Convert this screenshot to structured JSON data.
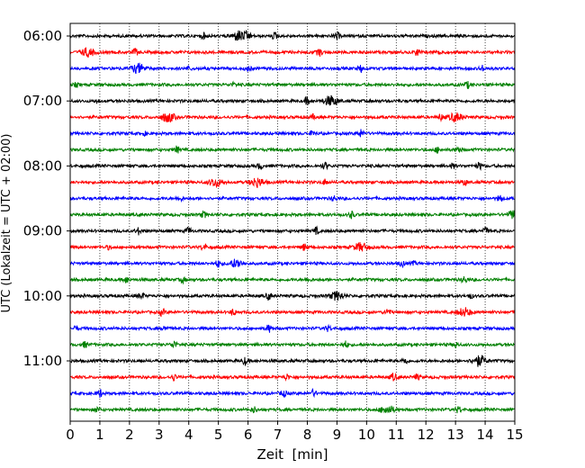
{
  "chart_data": {
    "type": "line",
    "title": "",
    "xlabel": "Zeit  [min]",
    "ylabel": "UTC (Lokalzeit = UTC + 02:00)",
    "xlim": [
      0,
      15
    ],
    "x_ticks": [
      "0",
      "1",
      "2",
      "3",
      "4",
      "5",
      "6",
      "7",
      "8",
      "9",
      "10",
      "11",
      "12",
      "13",
      "14",
      "15"
    ],
    "y_tick_labels": [
      "06:00",
      "07:00",
      "08:00",
      "09:00",
      "10:00",
      "11:00"
    ],
    "trace_interval_minutes": 15,
    "start_time": "06:00",
    "trace_count": 24,
    "trace_colors": [
      "#000000",
      "#ff0000",
      "#0000ff",
      "#008000"
    ],
    "grid": "vertical dotted",
    "legend": "none",
    "traces": [
      {
        "start": "06:00",
        "color": "#000000",
        "bursts": [
          [
            4.5,
            0.5
          ],
          [
            5.7,
            1.0
          ],
          [
            6.0,
            0.7
          ],
          [
            6.9,
            0.6
          ],
          [
            9.0,
            0.7
          ]
        ]
      },
      {
        "start": "06:15",
        "color": "#ff0000",
        "bursts": [
          [
            0.6,
            0.8
          ],
          [
            2.2,
            0.6
          ],
          [
            8.4,
            0.7
          ],
          [
            11.7,
            0.6
          ],
          [
            12.5,
            0.5
          ]
        ]
      },
      {
        "start": "06:30",
        "color": "#0000ff",
        "bursts": [
          [
            2.3,
            0.9
          ],
          [
            4.0,
            0.3
          ],
          [
            6.0,
            0.5
          ],
          [
            9.8,
            0.6
          ],
          [
            13.9,
            0.5
          ]
        ]
      },
      {
        "start": "06:45",
        "color": "#008000",
        "bursts": [
          [
            0.2,
            0.3
          ],
          [
            5.5,
            0.3
          ],
          [
            13.4,
            0.6
          ]
        ]
      },
      {
        "start": "07:00",
        "color": "#000000",
        "bursts": [
          [
            0.9,
            0.3
          ],
          [
            8.0,
            0.7
          ],
          [
            8.8,
            1.0
          ]
        ]
      },
      {
        "start": "07:15",
        "color": "#ff0000",
        "bursts": [
          [
            3.3,
            0.9
          ],
          [
            8.2,
            0.4
          ],
          [
            12.5,
            0.5
          ],
          [
            13.0,
            0.8
          ]
        ]
      },
      {
        "start": "07:30",
        "color": "#0000ff",
        "bursts": [
          [
            2.5,
            0.3
          ],
          [
            8.2,
            0.5
          ],
          [
            9.8,
            0.7
          ]
        ]
      },
      {
        "start": "07:45",
        "color": "#008000",
        "bursts": [
          [
            3.6,
            0.6
          ],
          [
            12.4,
            0.5
          ],
          [
            13.1,
            0.6
          ]
        ]
      },
      {
        "start": "08:00",
        "color": "#000000",
        "bursts": [
          [
            6.4,
            0.5
          ],
          [
            8.6,
            0.6
          ],
          [
            12.9,
            0.4
          ],
          [
            13.8,
            0.6
          ]
        ]
      },
      {
        "start": "08:15",
        "color": "#ff0000",
        "bursts": [
          [
            4.9,
            0.8
          ],
          [
            6.3,
            0.9
          ],
          [
            8.6,
            0.5
          ],
          [
            13.3,
            0.6
          ]
        ]
      },
      {
        "start": "08:30",
        "color": "#0000ff",
        "bursts": [
          [
            3.7,
            0.4
          ],
          [
            8.9,
            0.5
          ],
          [
            14.5,
            0.6
          ]
        ]
      },
      {
        "start": "08:45",
        "color": "#008000",
        "bursts": [
          [
            4.5,
            0.6
          ],
          [
            9.5,
            0.6
          ],
          [
            15.0,
            0.9
          ]
        ]
      },
      {
        "start": "09:00",
        "color": "#000000",
        "bursts": [
          [
            2.3,
            0.6
          ],
          [
            4.0,
            0.6
          ],
          [
            8.3,
            0.6
          ],
          [
            14.0,
            0.7
          ]
        ]
      },
      {
        "start": "09:15",
        "color": "#ff0000",
        "bursts": [
          [
            1.3,
            0.3
          ],
          [
            4.5,
            0.6
          ],
          [
            7.9,
            0.6
          ],
          [
            9.8,
            0.8
          ]
        ]
      },
      {
        "start": "09:30",
        "color": "#0000ff",
        "bursts": [
          [
            5.0,
            0.7
          ],
          [
            5.6,
            0.8
          ],
          [
            11.2,
            0.6
          ],
          [
            11.6,
            0.3
          ]
        ]
      },
      {
        "start": "09:45",
        "color": "#008000",
        "bursts": [
          [
            1.9,
            0.6
          ],
          [
            3.8,
            0.5
          ],
          [
            8.0,
            0.4
          ],
          [
            13.3,
            0.6
          ]
        ]
      },
      {
        "start": "10:00",
        "color": "#000000",
        "bursts": [
          [
            2.4,
            0.6
          ],
          [
            6.7,
            0.7
          ],
          [
            9.0,
            0.8
          ],
          [
            13.5,
            0.4
          ]
        ]
      },
      {
        "start": "10:15",
        "color": "#ff0000",
        "bursts": [
          [
            3.1,
            0.6
          ],
          [
            5.5,
            0.6
          ],
          [
            10.7,
            0.6
          ],
          [
            13.3,
            0.8
          ]
        ]
      },
      {
        "start": "10:30",
        "color": "#0000ff",
        "bursts": [
          [
            0.2,
            0.4
          ],
          [
            3.2,
            0.5
          ],
          [
            6.7,
            0.7
          ],
          [
            8.7,
            0.5
          ]
        ]
      },
      {
        "start": "10:45",
        "color": "#008000",
        "bursts": [
          [
            0.5,
            0.5
          ],
          [
            3.5,
            0.7
          ],
          [
            9.3,
            0.6
          ],
          [
            13.0,
            0.5
          ]
        ]
      },
      {
        "start": "11:00",
        "color": "#000000",
        "bursts": [
          [
            5.9,
            0.7
          ],
          [
            11.3,
            0.6
          ],
          [
            13.8,
            1.0
          ]
        ]
      },
      {
        "start": "11:15",
        "color": "#ff0000",
        "bursts": [
          [
            3.5,
            0.6
          ],
          [
            7.3,
            0.5
          ],
          [
            10.9,
            0.7
          ],
          [
            11.7,
            0.5
          ]
        ]
      },
      {
        "start": "11:30",
        "color": "#0000ff",
        "bursts": [
          [
            1.0,
            0.7
          ],
          [
            7.2,
            0.6
          ],
          [
            8.2,
            0.6
          ]
        ]
      },
      {
        "start": "11:45",
        "color": "#008000",
        "bursts": [
          [
            0.9,
            0.5
          ],
          [
            6.2,
            0.5
          ],
          [
            10.7,
            0.8
          ],
          [
            13.1,
            0.6
          ]
        ]
      }
    ]
  }
}
